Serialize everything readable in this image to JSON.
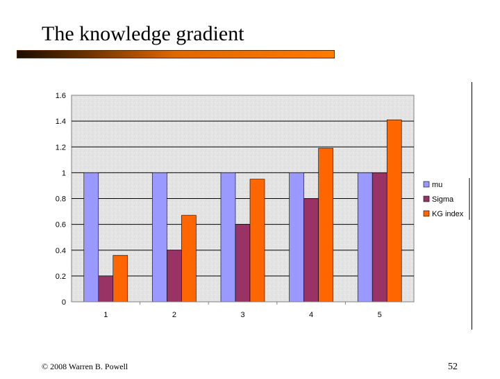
{
  "slide": {
    "title": "The knowledge gradient",
    "footer": "© 2008 Warren B. Powell",
    "page_number": "52"
  },
  "colors": {
    "plot_background": "#e4e4e4",
    "mu": "#9999ff",
    "sigma": "#993366",
    "kg_index": "#ff6600",
    "gridline": "#000000",
    "title_bar_accent": "#ff7a00"
  },
  "chart_data": {
    "type": "bar",
    "title": "",
    "xlabel": "",
    "ylabel": "",
    "categories": [
      "1",
      "2",
      "3",
      "4",
      "5"
    ],
    "series": [
      {
        "name": "mu",
        "values": [
          1,
          1,
          1,
          1,
          1
        ]
      },
      {
        "name": "Sigma",
        "values": [
          0.2,
          0.4,
          0.6,
          0.8,
          1.0
        ]
      },
      {
        "name": "KG index",
        "values": [
          0.36,
          0.67,
          0.95,
          1.19,
          1.41
        ]
      }
    ],
    "ylim": [
      0,
      1.6
    ],
    "yticks": [
      0,
      0.2,
      0.4,
      0.6,
      0.8,
      1,
      1.2,
      1.4,
      1.6
    ],
    "ytick_labels": [
      "0",
      "0.2",
      "0.4",
      "0.6",
      "0.8",
      "1",
      "1.2",
      "1.4",
      "1.6"
    ],
    "grid": "horizontal",
    "legend_position": "right"
  }
}
